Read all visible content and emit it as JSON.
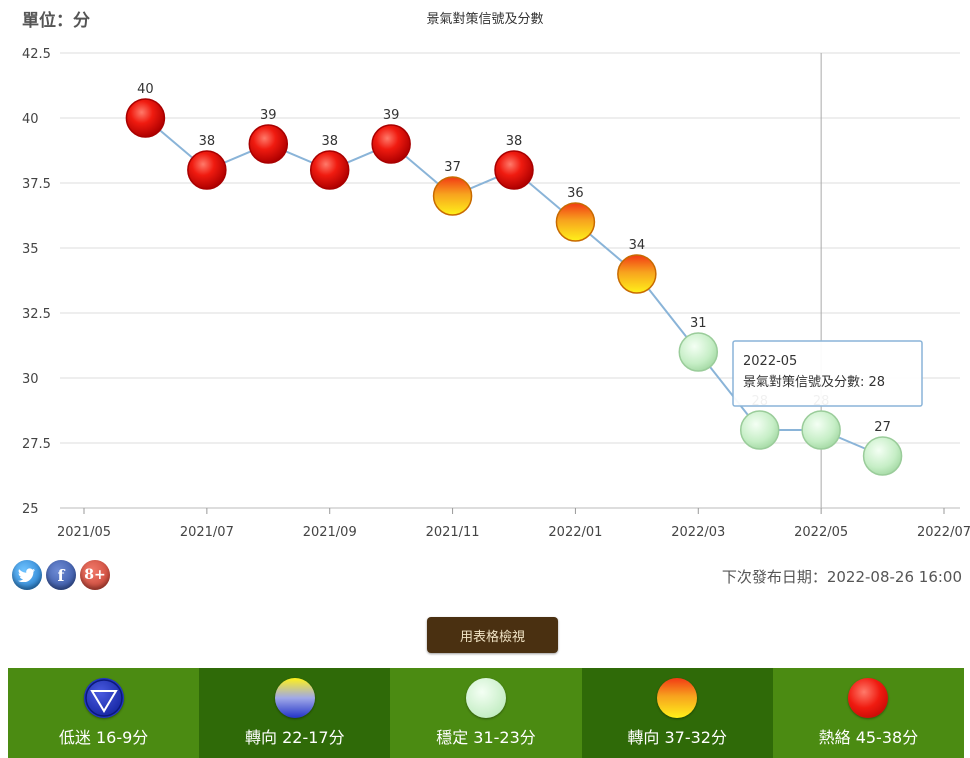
{
  "unit_label": "單位：分",
  "chart_data": {
    "type": "line",
    "title": "景氣對策信號及分數",
    "xlabel": "",
    "ylabel": "",
    "ylim": [
      25,
      42.5
    ],
    "yticks": [
      "25",
      "27.5",
      "30",
      "32.5",
      "35",
      "37.5",
      "40",
      "42.5"
    ],
    "xticks": [
      "2021/05",
      "2021/07",
      "2021/09",
      "2021/11",
      "2022/01",
      "2022/03",
      "2022/05",
      "2022/07"
    ],
    "x": [
      "2021-06",
      "2021-07",
      "2021-08",
      "2021-09",
      "2021-10",
      "2021-11",
      "2021-12",
      "2022-01",
      "2022-02",
      "2022-03",
      "2022-04",
      "2022-05",
      "2022-06"
    ],
    "values": [
      40,
      38,
      39,
      38,
      39,
      37,
      38,
      36,
      34,
      31,
      28,
      28,
      27
    ],
    "signals": [
      "red",
      "red",
      "red",
      "red",
      "red",
      "yellow-red",
      "red",
      "yellow-red",
      "yellow-red",
      "green",
      "green",
      "green",
      "green"
    ],
    "series_color": "#8ab4d8",
    "grid": true,
    "tooltip": {
      "date": "2022-05",
      "text": "景氣對策信號及分數: 28"
    }
  },
  "social": {
    "twitter_icon": "twitter-icon",
    "facebook_icon": "facebook-icon",
    "google_plus_icon": "google-plus-icon",
    "facebook_glyph": "f",
    "google_plus_glyph": "8+"
  },
  "next_release": "下次發布日期：2022-08-26 16:00",
  "table_view_button": "用表格檢視",
  "legend": [
    {
      "label": "低迷 16-9分",
      "signal": "blue",
      "bg": "light"
    },
    {
      "label": "轉向 22-17分",
      "signal": "yellow-blue",
      "bg": "dark"
    },
    {
      "label": "穩定 31-23分",
      "signal": "green",
      "bg": "light"
    },
    {
      "label": "轉向 37-32分",
      "signal": "yellow-red",
      "bg": "dark"
    },
    {
      "label": "熱絡 45-38分",
      "signal": "red",
      "bg": "light"
    }
  ],
  "colors": {
    "red": "#e8100c",
    "yellow-red": "#f6a21d",
    "green": "#c8f0c8",
    "yellow-blue": "#7f8fe0",
    "blue": "#2234c8"
  }
}
